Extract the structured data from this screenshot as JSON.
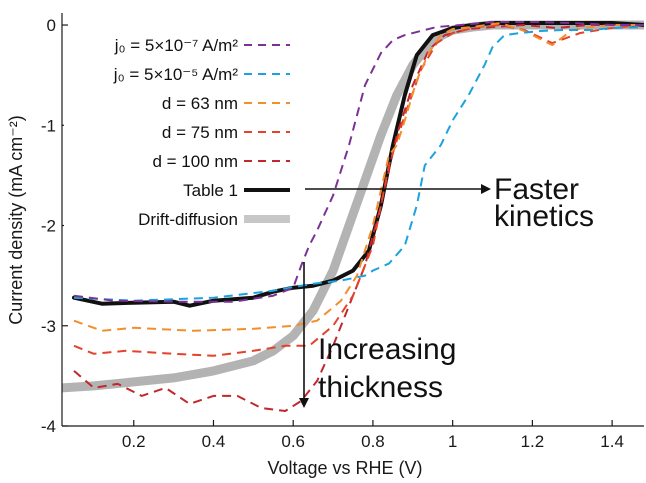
{
  "chart_data": {
    "type": "line",
    "xlabel": "Voltage vs RHE (V)",
    "ylabel": "Current density (mA cm⁻²)",
    "xlim": [
      0.02,
      1.48
    ],
    "ylim": [
      -4.0,
      0.12
    ],
    "xticks": [
      0.2,
      0.4,
      0.6,
      0.8,
      1.0,
      1.2,
      1.4
    ],
    "xtick_labels": [
      "0.2",
      "0.4",
      "0.6",
      "0.8",
      "1",
      "1.2",
      "1.4"
    ],
    "yticks": [
      0,
      -1,
      -2,
      -3,
      -4
    ],
    "ytick_labels": [
      "0",
      "-1",
      "-2",
      "-3",
      "-4"
    ],
    "grid": false,
    "legend_position": "top-left",
    "series": [
      {
        "name": "j₀ = 5×10⁻⁷ A/m²",
        "color": "#7b3294",
        "style": "dashed",
        "width": 2,
        "x": [
          0.05,
          0.15,
          0.3,
          0.45,
          0.55,
          0.6,
          0.62,
          0.64,
          0.66,
          0.7,
          0.74,
          0.78,
          0.82,
          0.85,
          0.88,
          0.92,
          0.96,
          1.02,
          1.1,
          1.2,
          1.3,
          1.4,
          1.48
        ],
        "y": [
          -2.7,
          -2.75,
          -2.76,
          -2.76,
          -2.7,
          -2.62,
          -2.4,
          -2.2,
          -2.05,
          -1.7,
          -1.2,
          -0.6,
          -0.28,
          -0.15,
          -0.1,
          -0.06,
          -0.02,
          0.0,
          0.03,
          0.03,
          0.02,
          0.0,
          0.0
        ]
      },
      {
        "name": "j₀ = 5×10⁻⁵ A/m²",
        "color": "#1aa3e0",
        "style": "dashed",
        "width": 2,
        "x": [
          0.05,
          0.2,
          0.4,
          0.55,
          0.65,
          0.72,
          0.78,
          0.8,
          0.84,
          0.88,
          0.91,
          0.93,
          0.97,
          1.0,
          1.04,
          1.08,
          1.1,
          1.13,
          1.17,
          1.22,
          1.28,
          1.35,
          1.4,
          1.48
        ],
        "y": [
          -2.72,
          -2.75,
          -2.72,
          -2.65,
          -2.58,
          -2.55,
          -2.5,
          -2.45,
          -2.38,
          -2.2,
          -1.8,
          -1.4,
          -1.2,
          -0.95,
          -0.7,
          -0.4,
          -0.22,
          -0.1,
          -0.08,
          -0.06,
          -0.05,
          -0.05,
          -0.03,
          -0.02
        ]
      },
      {
        "name": "d = 63 nm",
        "color": "#f28e2b",
        "style": "dashed",
        "width": 2,
        "x": [
          0.05,
          0.12,
          0.2,
          0.35,
          0.5,
          0.6,
          0.66,
          0.72,
          0.76,
          0.8,
          0.84,
          0.86,
          0.88,
          0.91,
          0.94,
          0.97,
          1.0,
          1.05,
          1.12,
          1.18,
          1.25,
          1.3,
          1.35,
          1.4,
          1.48
        ],
        "y": [
          -2.95,
          -3.05,
          -3.02,
          -3.05,
          -3.03,
          -3.0,
          -2.95,
          -2.75,
          -2.5,
          -2.0,
          -1.3,
          -1.2,
          -0.95,
          -0.55,
          -0.28,
          -0.1,
          -0.04,
          -0.02,
          0.02,
          -0.06,
          -0.2,
          -0.05,
          -0.02,
          0.0,
          0.0
        ]
      },
      {
        "name": "d = 75 nm",
        "color": "#e4432b",
        "style": "dashed",
        "width": 2,
        "x": [
          0.05,
          0.1,
          0.18,
          0.3,
          0.4,
          0.5,
          0.58,
          0.64,
          0.7,
          0.75,
          0.8,
          0.84,
          0.88,
          0.92,
          0.96,
          1.0,
          1.06,
          1.12,
          1.18,
          1.25,
          1.32,
          1.4,
          1.48
        ],
        "y": [
          -3.2,
          -3.28,
          -3.25,
          -3.28,
          -3.3,
          -3.25,
          -3.2,
          -3.2,
          -3.0,
          -2.7,
          -2.2,
          -1.4,
          -0.9,
          -0.45,
          -0.18,
          -0.08,
          -0.02,
          0.0,
          -0.05,
          -0.18,
          -0.08,
          -0.03,
          0.0
        ]
      },
      {
        "name": "d = 100 nm",
        "color": "#c1272d",
        "style": "dashed",
        "width": 2,
        "x": [
          0.05,
          0.1,
          0.16,
          0.22,
          0.28,
          0.34,
          0.4,
          0.46,
          0.52,
          0.58,
          0.62,
          0.66,
          0.7,
          0.74,
          0.78,
          0.82,
          0.86,
          0.9,
          0.94,
          0.98,
          1.04,
          1.1,
          1.18,
          1.26,
          1.34,
          1.42,
          1.48
        ],
        "y": [
          -3.45,
          -3.62,
          -3.58,
          -3.7,
          -3.62,
          -3.78,
          -3.7,
          -3.7,
          -3.82,
          -3.85,
          -3.75,
          -3.55,
          -3.2,
          -2.8,
          -2.4,
          -1.8,
          -1.1,
          -0.6,
          -0.25,
          -0.1,
          -0.04,
          -0.02,
          0.0,
          -0.03,
          0.0,
          0.0,
          0.0
        ]
      },
      {
        "name": "Table 1",
        "color": "#111111",
        "style": "solid",
        "width": 4,
        "x": [
          0.05,
          0.12,
          0.2,
          0.3,
          0.34,
          0.4,
          0.5,
          0.55,
          0.6,
          0.65,
          0.7,
          0.75,
          0.79,
          0.82,
          0.85,
          0.88,
          0.91,
          0.95,
          1.0,
          1.05,
          1.1,
          1.2,
          1.3,
          1.4,
          1.48
        ],
        "y": [
          -2.72,
          -2.78,
          -2.77,
          -2.76,
          -2.8,
          -2.75,
          -2.72,
          -2.66,
          -2.62,
          -2.6,
          -2.55,
          -2.45,
          -2.25,
          -1.8,
          -1.2,
          -0.7,
          -0.3,
          -0.1,
          -0.03,
          0.0,
          0.02,
          0.02,
          0.02,
          0.02,
          0.0
        ]
      },
      {
        "name": "Drift-diffusion",
        "color": "#999999",
        "style": "solid",
        "width": 9,
        "x": [
          0.02,
          0.1,
          0.2,
          0.3,
          0.4,
          0.5,
          0.55,
          0.6,
          0.65,
          0.7,
          0.74,
          0.78,
          0.82,
          0.86,
          0.9,
          0.95,
          1.0,
          1.05,
          1.1,
          1.2,
          1.3,
          1.4,
          1.48
        ],
        "y": [
          -3.62,
          -3.6,
          -3.56,
          -3.52,
          -3.45,
          -3.35,
          -3.25,
          -3.1,
          -2.85,
          -2.45,
          -2.0,
          -1.55,
          -1.1,
          -0.7,
          -0.4,
          -0.15,
          -0.05,
          -0.02,
          0.0,
          0.0,
          0.0,
          0.0,
          0.0
        ]
      }
    ],
    "annotations": [
      {
        "lines": [
          "Faster",
          "kinetics"
        ]
      },
      {
        "lines": [
          "Increasing",
          "thickness"
        ]
      }
    ]
  }
}
